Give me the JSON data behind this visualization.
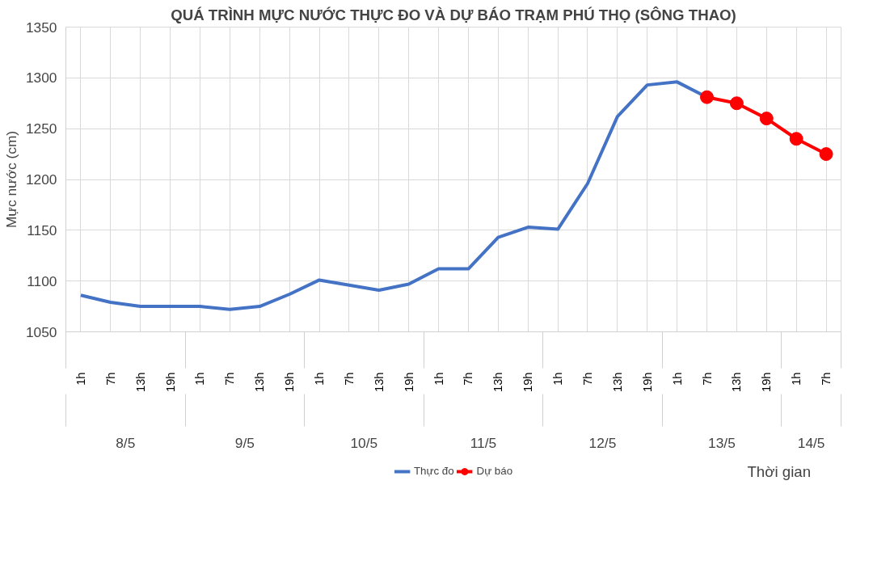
{
  "chart_data": {
    "type": "line",
    "title": "QUÁ TRÌNH MỰC NƯỚC THỰC ĐO VÀ DỰ BÁO TRẠM PHÚ THỌ (SÔNG THAO)",
    "xlabel": "Thời gian",
    "ylabel": "Mực nước (cm)",
    "categories": [
      "1h",
      "7h",
      "13h",
      "19h",
      "1h",
      "7h",
      "13h",
      "19h",
      "1h",
      "7h",
      "13h",
      "19h",
      "1h",
      "7h",
      "13h",
      "19h",
      "1h",
      "7h",
      "13h",
      "19h",
      "1h",
      "7h",
      "13h",
      "19h",
      "1h",
      "7h"
    ],
    "annotations": [
      "8/5",
      "9/5",
      "10/5",
      "11/5",
      "12/5",
      "13/5",
      "14/5"
    ],
    "series": [
      {
        "name": "Thực đo",
        "color": "#4472c4",
        "marker": "none",
        "values": [
          1086,
          1079,
          1075,
          1075,
          1075,
          1072,
          1075,
          1087,
          1101,
          1096,
          1091,
          1097,
          1112,
          1112,
          1143,
          1153,
          1151,
          1196,
          1262,
          1293,
          1296,
          1281,
          null,
          null,
          null,
          null
        ]
      },
      {
        "name": "Dự báo",
        "color": "#ff0000",
        "marker": "circle",
        "values": [
          null,
          null,
          null,
          null,
          null,
          null,
          null,
          null,
          null,
          null,
          null,
          null,
          null,
          null,
          null,
          null,
          null,
          null,
          null,
          null,
          null,
          1281,
          1275,
          1260,
          1240,
          1225
        ]
      }
    ],
    "ylim": [
      1050,
      1350
    ],
    "yticks": [
      1050,
      1100,
      1150,
      1200,
      1250,
      1300,
      1350
    ],
    "grid": true,
    "legend": "bottom",
    "line_style": "solid"
  }
}
